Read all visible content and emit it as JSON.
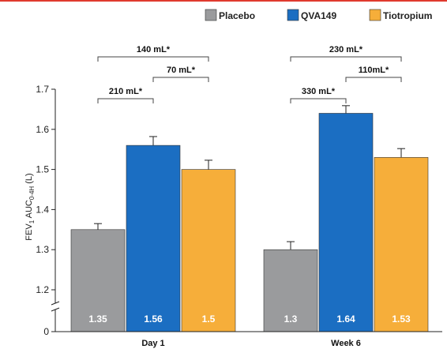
{
  "chart_data": {
    "type": "bar",
    "ylabel": "FEV₁ AUC₀₋₄H (L)",
    "ylabel_parts": {
      "main": "FEV",
      "sub1": "1",
      "mid": " AUC",
      "sub2": "0-4H",
      "end": " (L)"
    },
    "y_ticks": [
      "0",
      "1.2",
      "1.3",
      "1.4",
      "1.5",
      "1.6",
      "1.7"
    ],
    "y_tick_values": [
      1.1,
      1.2,
      1.3,
      1.4,
      1.5,
      1.6,
      1.7
    ],
    "y_axis_break": true,
    "ylim": [
      1.1,
      1.7
    ],
    "categories": [
      "Day 1",
      "Week 6"
    ],
    "series": [
      {
        "name": "Placebo",
        "color": "#9a9b9d",
        "values": [
          1.35,
          1.3
        ],
        "errors": [
          0.015,
          0.02
        ],
        "labels": [
          "1.35",
          "1.3"
        ]
      },
      {
        "name": "QVA149",
        "color": "#1b6ec2",
        "values": [
          1.56,
          1.64
        ],
        "errors": [
          0.022,
          0.019
        ],
        "labels": [
          "1.56",
          "1.64"
        ]
      },
      {
        "name": "Tiotropium",
        "color": "#f6ae3a",
        "values": [
          1.5,
          1.53
        ],
        "errors": [
          0.023,
          0.022
        ],
        "labels": [
          "1.5",
          "1.53"
        ]
      }
    ],
    "comparisons": [
      {
        "category": 0,
        "from": 0,
        "to": 2,
        "label": "140 mL*",
        "level": 2
      },
      {
        "category": 0,
        "from": 0,
        "to": 1,
        "label": "210 mL*",
        "level": 0
      },
      {
        "category": 0,
        "from": 1,
        "to": 2,
        "label": "70 mL*",
        "level": 1
      },
      {
        "category": 1,
        "from": 0,
        "to": 2,
        "label": "230 mL*",
        "level": 2
      },
      {
        "category": 1,
        "from": 0,
        "to": 1,
        "label": "330 mL*",
        "level": 0
      },
      {
        "category": 1,
        "from": 1,
        "to": 2,
        "label": "110mL*",
        "level": 1
      }
    ],
    "legend_position": "top-right",
    "grid": false
  }
}
